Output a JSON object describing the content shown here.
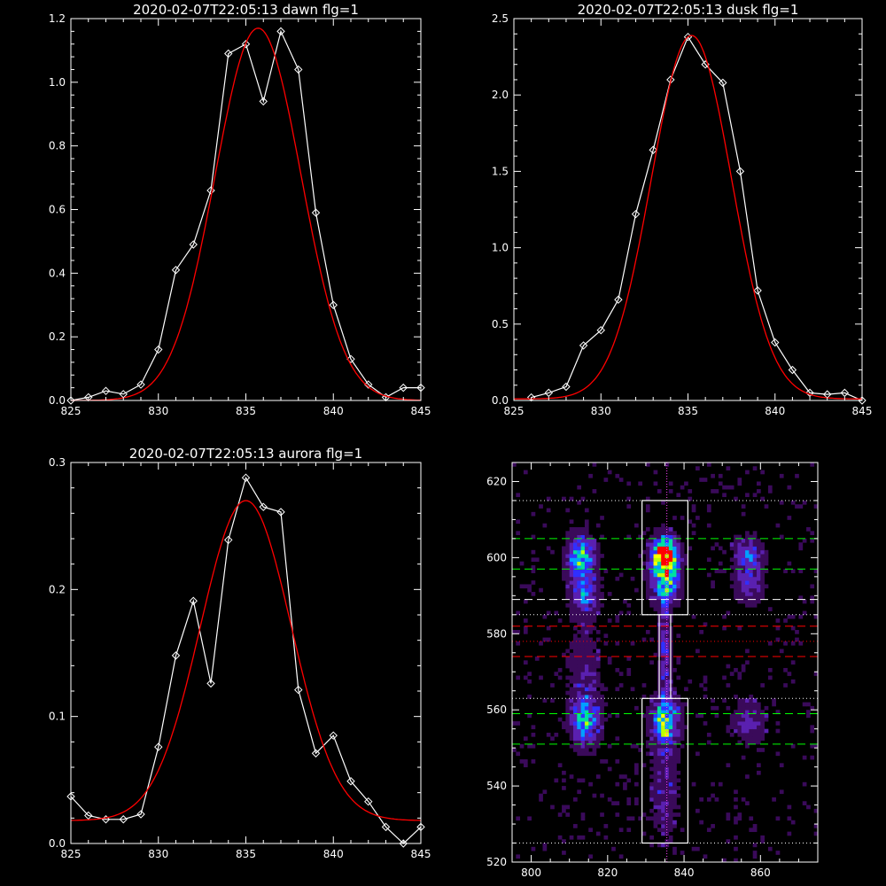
{
  "chart_data": [
    {
      "type": "line",
      "title": "2020-02-07T22:05:13 dawn flg=1",
      "xlim": [
        825,
        845
      ],
      "ylim": [
        0,
        1.2
      ],
      "xticks": [
        825,
        830,
        835,
        840,
        845
      ],
      "yticks": [
        0.0,
        0.2,
        0.4,
        0.6,
        0.8,
        1.0,
        1.2
      ],
      "ytick_labels": [
        "0.0",
        "0.2",
        "0.4",
        "0.6",
        "0.8",
        "1.0",
        "1.2"
      ],
      "series": [
        {
          "color": "#ffffff",
          "markers": "diamond",
          "x": [
            825,
            826,
            827,
            828,
            829,
            830,
            831,
            832,
            833,
            834,
            835,
            836,
            837,
            838,
            839,
            840,
            841,
            842,
            843,
            844,
            845
          ],
          "y": [
            0.0,
            0.01,
            0.03,
            0.02,
            0.05,
            0.16,
            0.41,
            0.49,
            0.66,
            1.09,
            1.12,
            0.94,
            1.16,
            1.04,
            0.59,
            0.3,
            0.13,
            0.05,
            0.01,
            0.04,
            0.04
          ]
        },
        {
          "color": "#ff0000",
          "fit": "gaussian",
          "amp": 1.17,
          "center": 835.7,
          "sigma": 2.45,
          "offset": 0.0
        }
      ]
    },
    {
      "type": "line",
      "title": "2020-02-07T22:05:13 dusk flg=1",
      "xlim": [
        825,
        845
      ],
      "ylim": [
        0,
        2.5
      ],
      "xticks": [
        825,
        830,
        835,
        840,
        845
      ],
      "yticks": [
        0.0,
        0.5,
        1.0,
        1.5,
        2.0,
        2.5
      ],
      "ytick_labels": [
        "0.0",
        "0.5",
        "1.0",
        "1.5",
        "2.0",
        "2.5"
      ],
      "series": [
        {
          "color": "#ffffff",
          "markers": "diamond",
          "x": [
            826,
            827,
            828,
            829,
            830,
            831,
            832,
            833,
            834,
            835,
            836,
            837,
            838,
            839,
            840,
            841,
            842,
            843,
            844,
            845
          ],
          "y": [
            0.02,
            0.05,
            0.09,
            0.36,
            0.46,
            0.66,
            1.22,
            1.64,
            2.1,
            2.38,
            2.2,
            2.08,
            1.5,
            0.72,
            0.38,
            0.2,
            0.05,
            0.04,
            0.05,
            0.0
          ]
        },
        {
          "color": "#ff0000",
          "fit": "gaussian",
          "amp": 2.38,
          "center": 835.2,
          "sigma": 2.3,
          "offset": 0.01
        }
      ]
    },
    {
      "type": "line",
      "title": "2020-02-07T22:05:13 aurora flg=1",
      "xlim": [
        825,
        845
      ],
      "ylim": [
        0,
        0.3
      ],
      "xticks": [
        825,
        830,
        835,
        840,
        845
      ],
      "yticks": [
        0.0,
        0.1,
        0.2,
        0.3
      ],
      "ytick_labels": [
        "0.0",
        "0.1",
        "0.2",
        "0.3"
      ],
      "series": [
        {
          "color": "#ffffff",
          "markers": "diamond",
          "x": [
            825,
            826,
            827,
            828,
            829,
            830,
            831,
            832,
            833,
            834,
            835,
            836,
            837,
            838,
            839,
            840,
            841,
            842,
            843,
            844,
            845
          ],
          "y": [
            0.037,
            0.022,
            0.019,
            0.019,
            0.023,
            0.076,
            0.148,
            0.191,
            0.126,
            0.239,
            0.288,
            0.265,
            0.261,
            0.121,
            0.071,
            0.085,
            0.049,
            0.033,
            0.013,
            0.0,
            0.013
          ]
        },
        {
          "color": "#ff0000",
          "fit": "gaussian",
          "amp": 0.252,
          "center": 835.0,
          "sigma": 2.6,
          "offset": 0.018
        }
      ]
    },
    {
      "type": "heatmap",
      "title": "",
      "xlim": [
        795,
        875
      ],
      "ylim": [
        520,
        625
      ],
      "xticks": [
        800,
        820,
        840,
        860
      ],
      "yticks": [
        520,
        540,
        560,
        580,
        600,
        620
      ],
      "colormap": [
        "#000000",
        "#3a0a5a",
        "#5a20b0",
        "#3030ff",
        "#00a0ff",
        "#00e0a0",
        "#c0ff00",
        "#ffff00",
        "#ff0000"
      ],
      "blobs": [
        {
          "x": 813,
          "y": 600,
          "sx": 2.5,
          "sy": 4.0,
          "amp": 0.55
        },
        {
          "x": 814,
          "y": 590,
          "sx": 2.5,
          "sy": 3.0,
          "amp": 0.4
        },
        {
          "x": 835,
          "y": 601,
          "sx": 2.2,
          "sy": 3.0,
          "amp": 1.0
        },
        {
          "x": 835,
          "y": 594,
          "sx": 2.5,
          "sy": 4.0,
          "amp": 0.6
        },
        {
          "x": 857,
          "y": 600,
          "sx": 2.5,
          "sy": 3.5,
          "amp": 0.38
        },
        {
          "x": 857,
          "y": 592,
          "sx": 2.5,
          "sy": 3.0,
          "amp": 0.22
        },
        {
          "x": 835,
          "y": 557,
          "sx": 2.5,
          "sy": 4.0,
          "amp": 0.6
        },
        {
          "x": 814,
          "y": 557,
          "sx": 2.5,
          "sy": 4.0,
          "amp": 0.5
        },
        {
          "x": 857,
          "y": 557,
          "sx": 3.0,
          "sy": 4.0,
          "amp": 0.22
        },
        {
          "x": 835,
          "y": 575,
          "sx": 1.0,
          "sy": 12.0,
          "amp": 0.28
        },
        {
          "x": 835,
          "y": 540,
          "sx": 2.5,
          "sy": 10.0,
          "amp": 0.18
        },
        {
          "x": 814,
          "y": 570,
          "sx": 3.0,
          "sy": 10.0,
          "amp": 0.15
        }
      ],
      "boxes": [
        {
          "x0": 829,
          "x1": 841,
          "y0": 585,
          "y1": 615
        },
        {
          "x0": 829,
          "x1": 841,
          "y0": 525,
          "y1": 563
        },
        {
          "x0": 833.5,
          "x1": 836.5,
          "y0": 563,
          "y1": 585
        }
      ],
      "hlines": [
        {
          "y": 615,
          "color": "#ffffff",
          "style": "dotted"
        },
        {
          "y": 605,
          "color": "#00ff00",
          "style": "dashed"
        },
        {
          "y": 597,
          "color": "#00ff00",
          "style": "dashed"
        },
        {
          "y": 589,
          "color": "#ffffff",
          "style": "dashed"
        },
        {
          "y": 585,
          "color": "#ffffff",
          "style": "dotted"
        },
        {
          "y": 582,
          "color": "#ff0000",
          "style": "dashed"
        },
        {
          "y": 578,
          "color": "#ff0000",
          "style": "dotted"
        },
        {
          "y": 574,
          "color": "#ff0000",
          "style": "dashed"
        },
        {
          "y": 563,
          "color": "#ffffff",
          "style": "dotted"
        },
        {
          "y": 559,
          "color": "#ffffff",
          "style": "dashed"
        },
        {
          "y": 559,
          "color": "#00ff00",
          "style": "dashed"
        },
        {
          "y": 551,
          "color": "#00ff00",
          "style": "dashed"
        },
        {
          "y": 525,
          "color": "#ffffff",
          "style": "dotted"
        }
      ],
      "vlines": [
        {
          "x": 835.5,
          "color": "#ff40ff",
          "style": "dotted"
        }
      ]
    }
  ]
}
